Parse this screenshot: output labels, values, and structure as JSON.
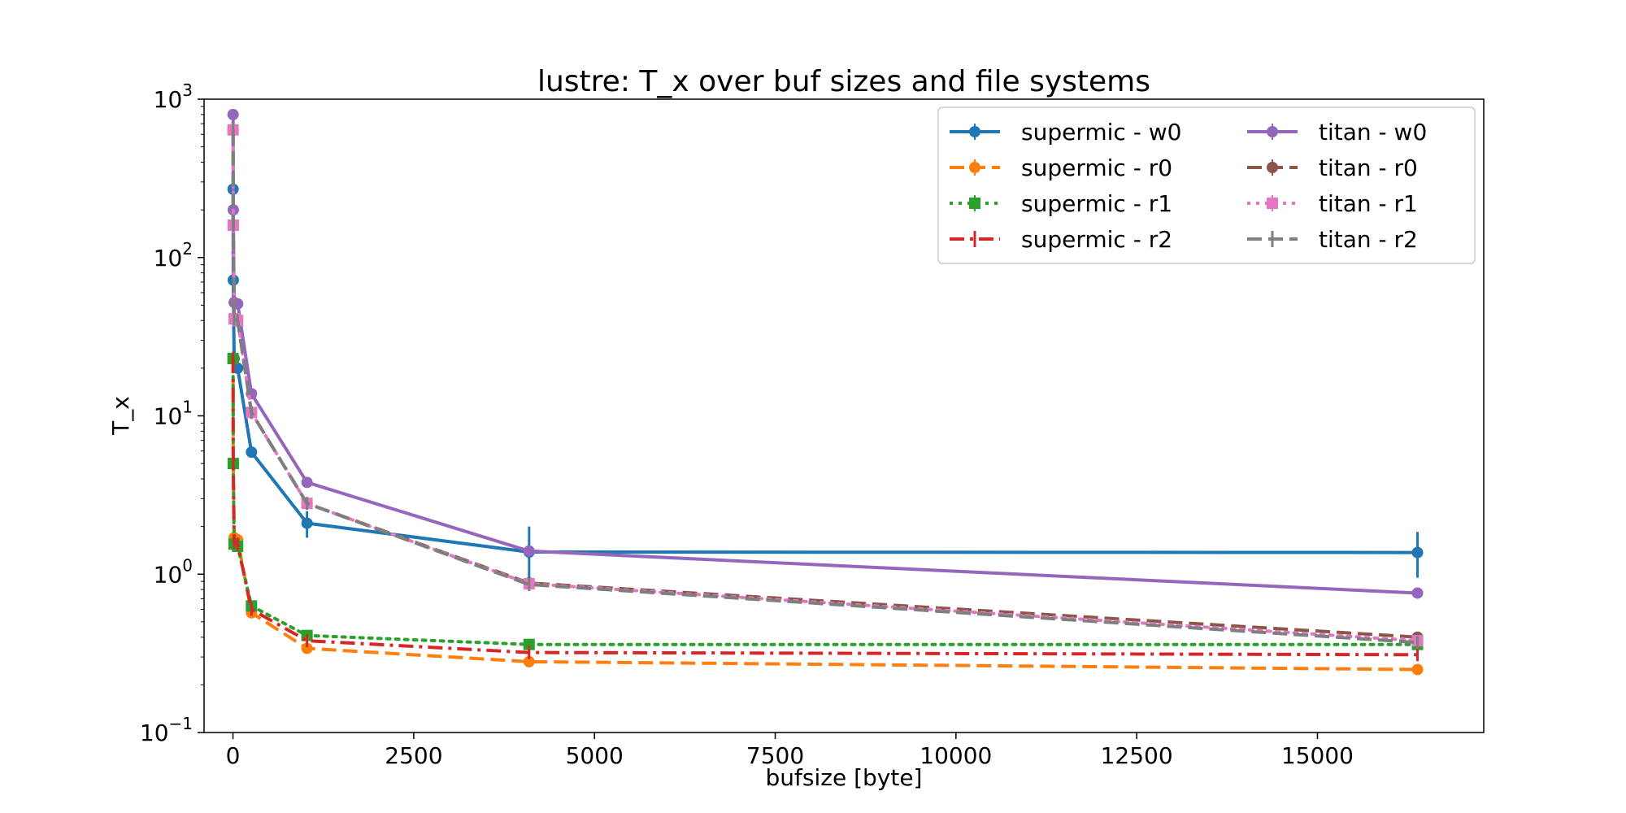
{
  "chart_data": {
    "type": "line",
    "title": "lustre: T_x over buf sizes and file systems",
    "xlabel": "bufsize [byte]",
    "ylabel": "T_x",
    "xlim": [
      -400,
      17300
    ],
    "ylim": [
      0.1,
      1000
    ],
    "yscale": "log",
    "xticks": [
      0,
      2500,
      5000,
      7500,
      10000,
      12500,
      15000
    ],
    "xtick_labels": [
      "0",
      "2500",
      "5000",
      "7500",
      "10000",
      "12500",
      "15000"
    ],
    "yticks": [
      0.1,
      1,
      10,
      100,
      1000
    ],
    "ytick_labels": [
      {
        "base": "10",
        "exp": "−1"
      },
      {
        "base": "10",
        "exp": "0"
      },
      {
        "base": "10",
        "exp": "1"
      },
      {
        "base": "10",
        "exp": "2"
      },
      {
        "base": "10",
        "exp": "3"
      }
    ],
    "grid": false,
    "legend_position": "top-right",
    "legend_columns": 2,
    "series": [
      {
        "name": "supermic - w0",
        "color": "#1f77b4",
        "dash": "solid",
        "marker": "circle",
        "x": [
          1,
          4,
          16,
          64,
          256,
          1024,
          4096,
          16384
        ],
        "y": [
          270,
          72,
          23,
          20,
          5.9,
          2.1,
          1.38,
          1.37
        ],
        "yerr_low": [
          null,
          null,
          null,
          null,
          null,
          1.7,
          0.9,
          0.95
        ],
        "yerr_high": [
          null,
          null,
          null,
          null,
          null,
          2.5,
          2.0,
          1.85
        ]
      },
      {
        "name": "supermic - r0",
        "color": "#ff7f0e",
        "dash": "dashed",
        "marker": "circle",
        "x": [
          1,
          4,
          16,
          64,
          256,
          1024,
          4096,
          16384
        ],
        "y": [
          23,
          5.0,
          1.7,
          1.65,
          0.57,
          0.34,
          0.28,
          0.25
        ]
      },
      {
        "name": "supermic - r1",
        "color": "#2ca02c",
        "dash": "dotted",
        "marker": "square",
        "x": [
          1,
          4,
          16,
          64,
          256,
          1024,
          4096,
          16384
        ],
        "y": [
          23,
          5.0,
          1.55,
          1.5,
          0.63,
          0.41,
          0.36,
          0.36
        ]
      },
      {
        "name": "supermic - r2",
        "color": "#d62728",
        "dash": "dashdot",
        "marker": "none",
        "x": [
          1,
          4,
          16,
          64,
          256,
          1024,
          4096,
          16384
        ],
        "y": [
          23,
          5.0,
          1.6,
          1.55,
          0.6,
          0.38,
          0.32,
          0.31
        ]
      },
      {
        "name": "titan - w0",
        "color": "#9467bd",
        "dash": "solid",
        "marker": "circle",
        "x": [
          1,
          4,
          16,
          64,
          256,
          1024,
          4096,
          16384
        ],
        "y": [
          800,
          200,
          52,
          51,
          13.8,
          3.8,
          1.4,
          0.76
        ]
      },
      {
        "name": "titan - r0",
        "color": "#8c564b",
        "dash": "dashed",
        "marker": "circle",
        "x": [
          1,
          4,
          16,
          64,
          256,
          1024,
          4096,
          16384
        ],
        "y": [
          640,
          160,
          41,
          40,
          10.5,
          2.8,
          0.88,
          0.4
        ]
      },
      {
        "name": "titan - r1",
        "color": "#e377c2",
        "dash": "dotted",
        "marker": "square",
        "x": [
          1,
          4,
          16,
          64,
          256,
          1024,
          4096,
          16384
        ],
        "y": [
          640,
          160,
          41,
          40,
          10.5,
          2.8,
          0.87,
          0.38
        ]
      },
      {
        "name": "titan - r2",
        "color": "#7f7f7f",
        "dash": "dashed",
        "marker": "none",
        "x": [
          1,
          4,
          16,
          64,
          256,
          1024,
          4096,
          16384
        ],
        "y": [
          640,
          160,
          41,
          40,
          10.5,
          2.8,
          0.86,
          0.37
        ]
      }
    ]
  }
}
